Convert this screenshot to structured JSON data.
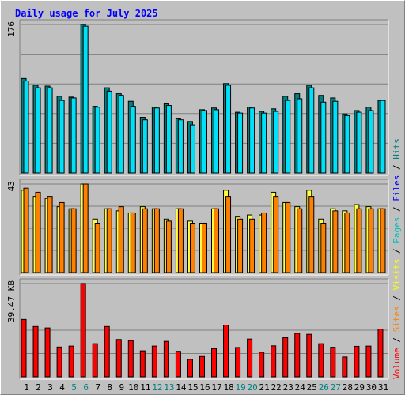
{
  "chart_data": {
    "type": "bar",
    "title": "Daily usage for July 2025",
    "categories": [
      "1",
      "2",
      "3",
      "4",
      "5",
      "6",
      "7",
      "8",
      "9",
      "10",
      "11",
      "12",
      "13",
      "14",
      "15",
      "16",
      "17",
      "18",
      "19",
      "20",
      "21",
      "22",
      "23",
      "24",
      "25",
      "26",
      "27",
      "28",
      "29",
      "30",
      "31"
    ],
    "weekend_categories": [
      "5",
      "6",
      "12",
      "13",
      "19",
      "20",
      "26",
      "27"
    ],
    "panels": [
      {
        "name": "hits-files",
        "max_label": "176",
        "ylim": [
          0,
          176
        ],
        "series": [
          {
            "name": "Hits",
            "color": "#008080",
            "values": [
              112,
              104,
              103,
              91,
              90,
              176,
              79,
              101,
              94,
              85,
              66,
              78,
              82,
              65,
              61,
              75,
              77,
              106,
              72,
              78,
              73,
              76,
              91,
              94,
              104,
              92,
              89,
              70,
              74,
              78,
              86
            ]
          },
          {
            "name": "Files",
            "color": "#00e0f8",
            "values": [
              109,
              101,
              101,
              86,
              89,
              174,
              78,
              97,
              92,
              79,
              63,
              77,
              80,
              63,
              57,
              74,
              75,
              104,
              71,
              77,
              71,
              73,
              86,
              88,
              101,
              84,
              85,
              68,
              72,
              74,
              86
            ]
          }
        ]
      },
      {
        "name": "pages-visits",
        "max_label": "43",
        "ylim": [
          0,
          43
        ],
        "series": [
          {
            "name": "Pages",
            "color": "#00c0c0",
            "values": []
          },
          {
            "name": "Visits",
            "color": "#ffff40",
            "values": [
              40,
              37,
              36,
              32,
              31,
              43,
              26,
              31,
              30,
              29,
              32,
              31,
              26,
              31,
              25,
              24,
              31,
              40,
              27,
              28,
              28,
              39,
              34,
              32,
              40,
              26,
              31,
              30,
              33,
              32,
              31
            ]
          },
          {
            "name": "Sites",
            "color": "#ff8000",
            "values": [
              41,
              39,
              37,
              34,
              31,
              43,
              24,
              31,
              32,
              29,
              31,
              31,
              25,
              31,
              24,
              24,
              31,
              37,
              26,
              26,
              29,
              37,
              34,
              31,
              37,
              24,
              30,
              29,
              31,
              31,
              31
            ]
          }
        ]
      },
      {
        "name": "volume",
        "max_label": "39.47 KB",
        "ylim": [
          0,
          39.47
        ],
        "series": [
          {
            "name": "Volume",
            "color": "#ff0000",
            "values": [
              24.3,
              21.3,
              20.7,
              12.6,
              13.0,
              39.5,
              14.0,
              21.3,
              15.8,
              15.3,
              11.0,
              13.0,
              15.0,
              10.8,
              7.4,
              8.6,
              11.9,
              21.9,
              12.4,
              16.0,
              10.4,
              13.1,
              16.6,
              18.4,
              18.0,
              14.0,
              12.5,
              8.4,
              12.9,
              13.0,
              20.2
            ]
          }
        ]
      }
    ],
    "legend_placement": "right-vertical",
    "legend": [
      {
        "label": "Volume",
        "color": "#ff0000"
      },
      {
        "label": "Sites",
        "color": "#ff8000"
      },
      {
        "label": "Visits",
        "color": "#ffff00"
      },
      {
        "label": "Pages",
        "color": "#00c0c0"
      },
      {
        "label": "Files",
        "color": "#0000ff"
      },
      {
        "label": "Hits",
        "color": "#008080"
      }
    ],
    "legend_separator": " / ",
    "grid": true
  }
}
